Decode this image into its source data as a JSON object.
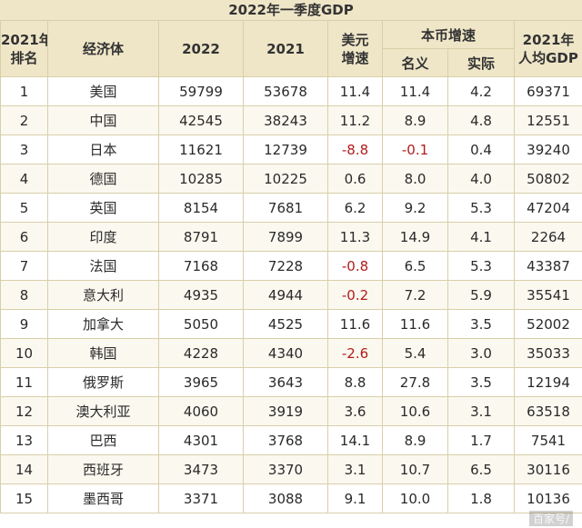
{
  "title": "2022年一季度GDP",
  "headers": {
    "rank_l1": "2021年",
    "rank_l2": "排名",
    "economy": "经济体",
    "y2022": "2022",
    "y2021": "2021",
    "usd_l1": "美元",
    "usd_l2": "增速",
    "local": "本币增速",
    "nominal": "名义",
    "real": "实际",
    "percap_l1": "2021年",
    "percap_l2": "人均GDP"
  },
  "rows": [
    {
      "rank": "1",
      "economy": "美国",
      "gdp2022": "59799",
      "gdp2021": "53678",
      "usd_growth": "11.4",
      "nominal": "11.4",
      "real": "4.2",
      "per_capita": "69371"
    },
    {
      "rank": "2",
      "economy": "中国",
      "gdp2022": "42545",
      "gdp2021": "38243",
      "usd_growth": "11.2",
      "nominal": "8.9",
      "real": "4.8",
      "per_capita": "12551"
    },
    {
      "rank": "3",
      "economy": "日本",
      "gdp2022": "11621",
      "gdp2021": "12739",
      "usd_growth": "-8.8",
      "nominal": "-0.1",
      "real": "0.4",
      "per_capita": "39240"
    },
    {
      "rank": "4",
      "economy": "德国",
      "gdp2022": "10285",
      "gdp2021": "10225",
      "usd_growth": "0.6",
      "nominal": "8.0",
      "real": "4.0",
      "per_capita": "50802"
    },
    {
      "rank": "5",
      "economy": "英国",
      "gdp2022": "8154",
      "gdp2021": "7681",
      "usd_growth": "6.2",
      "nominal": "9.2",
      "real": "5.3",
      "per_capita": "47204"
    },
    {
      "rank": "6",
      "economy": "印度",
      "gdp2022": "8791",
      "gdp2021": "7899",
      "usd_growth": "11.3",
      "nominal": "14.9",
      "real": "4.1",
      "per_capita": "2264"
    },
    {
      "rank": "7",
      "economy": "法国",
      "gdp2022": "7168",
      "gdp2021": "7228",
      "usd_growth": "-0.8",
      "nominal": "6.5",
      "real": "5.3",
      "per_capita": "43387"
    },
    {
      "rank": "8",
      "economy": "意大利",
      "gdp2022": "4935",
      "gdp2021": "4944",
      "usd_growth": "-0.2",
      "nominal": "7.2",
      "real": "5.9",
      "per_capita": "35541"
    },
    {
      "rank": "9",
      "economy": "加拿大",
      "gdp2022": "5050",
      "gdp2021": "4525",
      "usd_growth": "11.6",
      "nominal": "11.6",
      "real": "3.5",
      "per_capita": "52002"
    },
    {
      "rank": "10",
      "economy": "韩国",
      "gdp2022": "4228",
      "gdp2021": "4340",
      "usd_growth": "-2.6",
      "nominal": "5.4",
      "real": "3.0",
      "per_capita": "35033"
    },
    {
      "rank": "11",
      "economy": "俄罗斯",
      "gdp2022": "3965",
      "gdp2021": "3643",
      "usd_growth": "8.8",
      "nominal": "27.8",
      "real": "3.5",
      "per_capita": "12194"
    },
    {
      "rank": "12",
      "economy": "澳大利亚",
      "gdp2022": "4060",
      "gdp2021": "3919",
      "usd_growth": "3.6",
      "nominal": "10.6",
      "real": "3.1",
      "per_capita": "63518"
    },
    {
      "rank": "13",
      "economy": "巴西",
      "gdp2022": "4301",
      "gdp2021": "3768",
      "usd_growth": "14.1",
      "nominal": "8.9",
      "real": "1.7",
      "per_capita": "7541"
    },
    {
      "rank": "14",
      "economy": "西班牙",
      "gdp2022": "3473",
      "gdp2021": "3370",
      "usd_growth": "3.1",
      "nominal": "10.7",
      "real": "6.5",
      "per_capita": "30116"
    },
    {
      "rank": "15",
      "economy": "墨西哥",
      "gdp2022": "3371",
      "gdp2021": "3088",
      "usd_growth": "9.1",
      "nominal": "10.0",
      "real": "1.8",
      "per_capita": "10136"
    }
  ],
  "negative_color": "#b21c1c",
  "watermark": "百家号/"
}
